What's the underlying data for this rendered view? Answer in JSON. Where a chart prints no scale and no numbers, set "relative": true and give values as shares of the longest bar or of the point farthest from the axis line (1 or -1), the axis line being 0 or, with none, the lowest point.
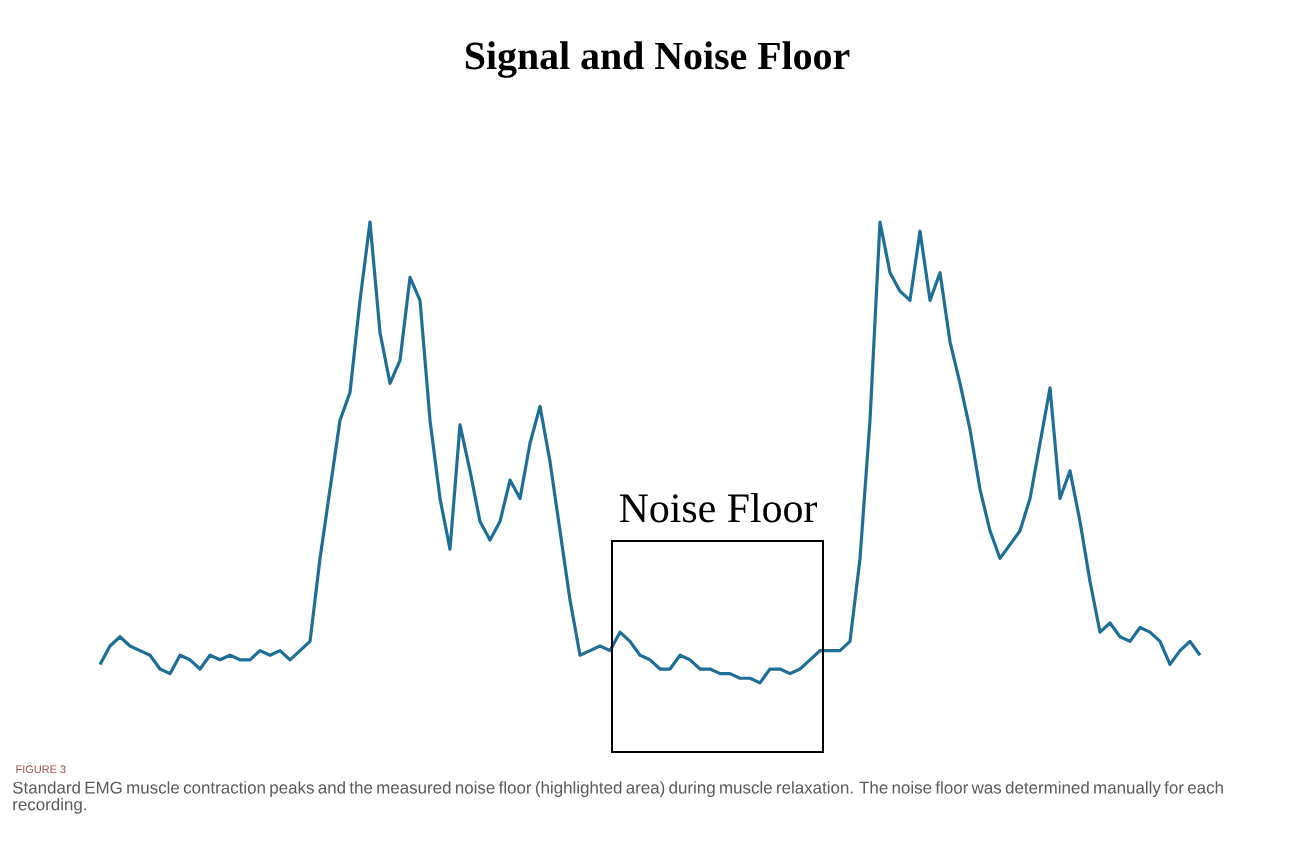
{
  "chart_data": {
    "type": "line",
    "title": "Signal and Noise Floor",
    "relative": true,
    "categories": [
      null,
      null,
      null,
      null,
      null,
      null,
      null,
      null,
      null,
      null,
      null,
      null,
      null,
      null,
      null,
      null,
      null,
      null,
      null,
      null,
      null,
      null,
      null,
      null,
      null,
      null,
      null,
      null,
      null,
      null,
      null,
      null,
      null,
      null,
      null,
      null,
      null,
      null,
      null,
      null,
      null,
      null,
      null,
      null,
      null,
      null,
      null,
      null,
      null,
      null,
      null,
      null,
      null,
      null,
      null,
      null,
      null,
      null,
      null,
      null,
      null,
      null,
      null,
      null,
      null,
      null,
      null,
      null,
      null,
      null,
      null,
      null,
      null,
      null,
      null,
      null,
      null,
      null,
      null,
      null,
      null,
      null,
      null,
      null,
      null,
      null,
      null,
      null,
      null,
      null,
      null,
      null,
      null,
      null,
      null,
      null,
      null,
      null,
      null,
      null,
      null,
      null,
      null,
      null,
      null,
      null,
      null,
      null,
      null,
      null,
      null
    ],
    "series": [
      {
        "color": "#1f6e96",
        "values": [
          0.04,
          0.08,
          0.1,
          0.08,
          0.07,
          0.06,
          0.03,
          0.02,
          0.06,
          0.05,
          0.03,
          0.06,
          0.05,
          0.06,
          0.05,
          0.05,
          0.07,
          0.06,
          0.07,
          0.05,
          0.07,
          0.09,
          0.27,
          0.42,
          0.57,
          0.63,
          0.83,
          1,
          0.76,
          0.65,
          0.7,
          0.88,
          0.83,
          0.57,
          0.4,
          0.29,
          0.56,
          0.46,
          0.35,
          0.31,
          0.35,
          0.44,
          0.4,
          0.52,
          0.6,
          0.48,
          0.33,
          0.18,
          0.06,
          0.07,
          0.08,
          0.07,
          0.11,
          0.09,
          0.06,
          0.05,
          0.03,
          0.03,
          0.06,
          0.05,
          0.03,
          0.03,
          0.02,
          0.02,
          0.01,
          0.01,
          0,
          0.03,
          0.03,
          0.02,
          0.03,
          0.05,
          0.07,
          0.07,
          0.07,
          0.09,
          0.27,
          0.57,
          1,
          0.89,
          0.85,
          0.83,
          0.98,
          0.83,
          0.89,
          0.74,
          0.65,
          0.55,
          0.42,
          0.33,
          0.27,
          0.3,
          0.33,
          0.4,
          0.52,
          0.64,
          0.4,
          0.46,
          0.35,
          0.22,
          0.11,
          0.13,
          0.1,
          0.09,
          0.12,
          0.11,
          0.09,
          0.04,
          0.07,
          0.09,
          0.06
        ]
      }
    ],
    "annotations": [
      "Noise Floor",
      "FIGURE 3",
      "Standard EMG muscle contraction peaks and the measured noise floor (highlighted area) during muscle relaxation. The noise floor was determined manually for each recording."
    ]
  }
}
